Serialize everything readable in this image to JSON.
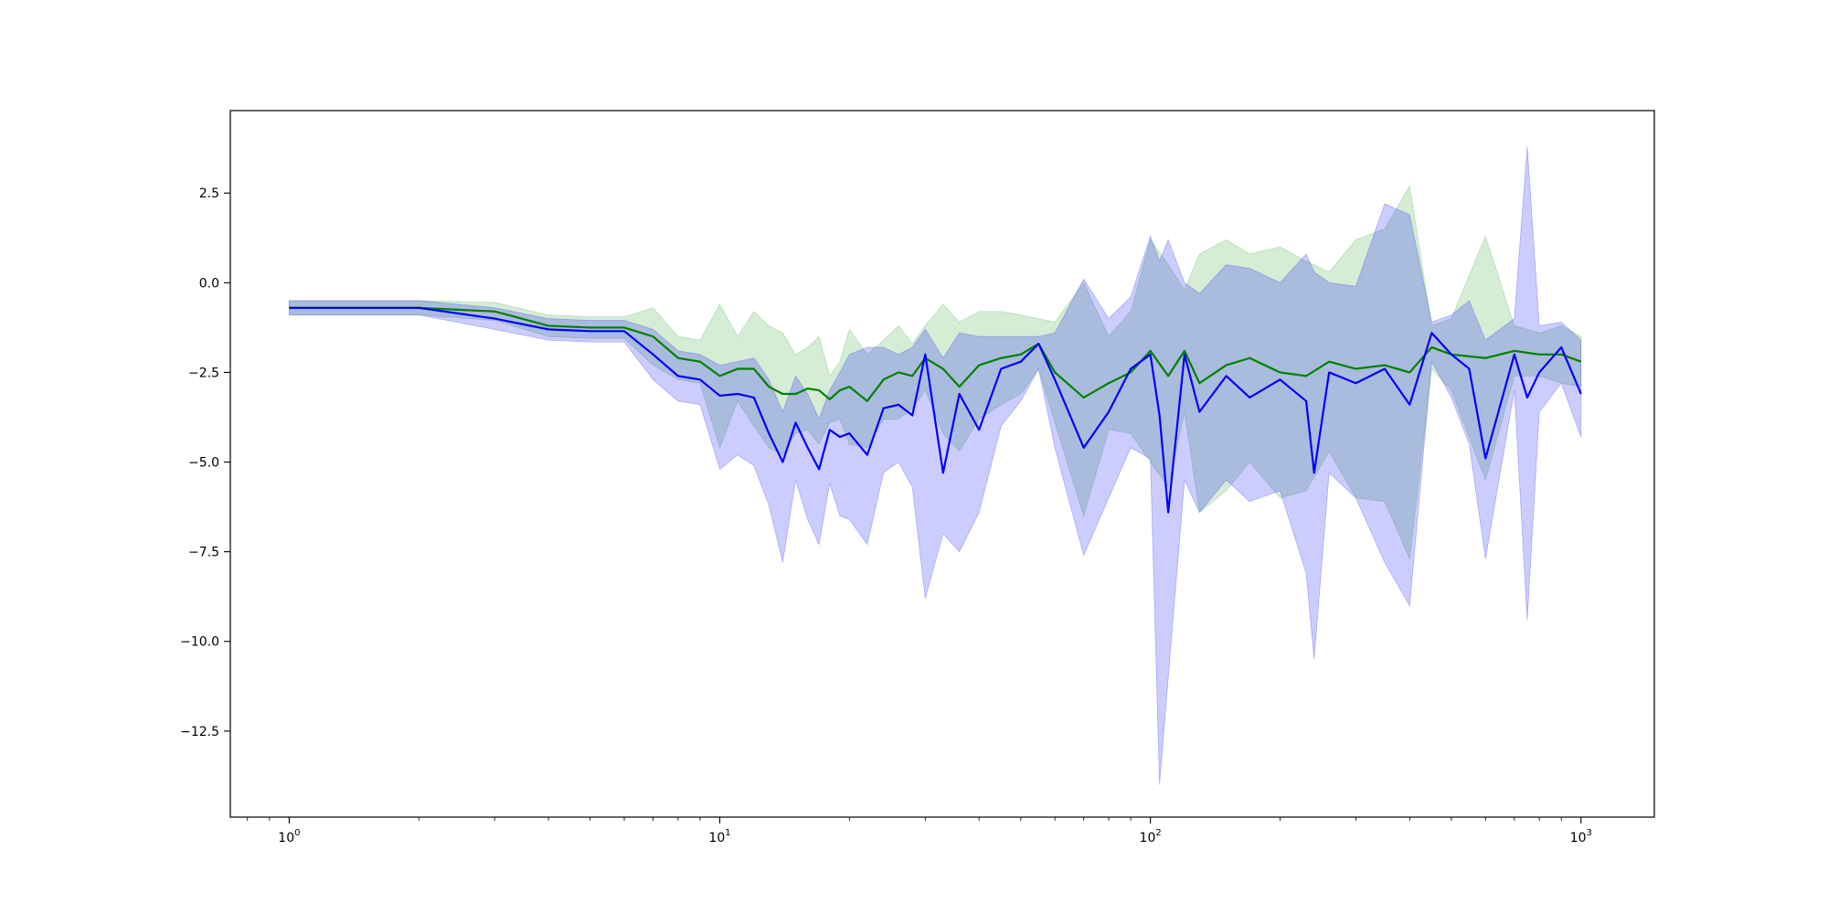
{
  "chart_data": {
    "type": "line",
    "title": "",
    "xlabel": "",
    "ylabel": "",
    "x_scale": "log",
    "xlim": [
      0.73,
      1480
    ],
    "ylim": [
      -14.9,
      4.8
    ],
    "grid": false,
    "legend": "none",
    "x_ticks": [
      {
        "value": 1,
        "base": "10",
        "exp": "0"
      },
      {
        "value": 10,
        "base": "10",
        "exp": "1"
      },
      {
        "value": 100,
        "base": "10",
        "exp": "2"
      },
      {
        "value": 1000,
        "base": "10",
        "exp": "3"
      }
    ],
    "y_ticks": [
      {
        "value": 2.5,
        "label": "2.5"
      },
      {
        "value": 0,
        "label": "0.0"
      },
      {
        "value": -2.5,
        "label": "−2.5"
      },
      {
        "value": -5,
        "label": "−5.0"
      },
      {
        "value": -7.5,
        "label": "−7.5"
      },
      {
        "value": -10,
        "label": "−10.0"
      },
      {
        "value": -12.5,
        "label": "−12.5"
      }
    ],
    "series": [
      {
        "color": "#008000",
        "band_color": "#2ca02c",
        "x": [
          1,
          2,
          3,
          4,
          5,
          6,
          7,
          8,
          9,
          10,
          11,
          12,
          13,
          14,
          15,
          16,
          17,
          18,
          19,
          20,
          22,
          24,
          26,
          28,
          30,
          33,
          36,
          40,
          45,
          50,
          55,
          60,
          70,
          80,
          90,
          100,
          110,
          120,
          130,
          150,
          170,
          200,
          230,
          260,
          300,
          350,
          400,
          450,
          500,
          600,
          700,
          800,
          900,
          1000
        ],
        "y": [
          -0.7,
          -0.7,
          -0.8,
          -1.2,
          -1.25,
          -1.25,
          -1.5,
          -2.1,
          -2.2,
          -2.6,
          -2.4,
          -2.4,
          -2.9,
          -3.1,
          -3.1,
          -2.95,
          -3.0,
          -3.25,
          -3.0,
          -2.9,
          -3.3,
          -2.7,
          -2.5,
          -2.6,
          -2.1,
          -2.4,
          -2.9,
          -2.3,
          -2.1,
          -2.0,
          -1.7,
          -2.5,
          -3.2,
          -2.8,
          -2.5,
          -1.9,
          -2.6,
          -1.9,
          -2.8,
          -2.3,
          -2.1,
          -2.5,
          -2.6,
          -2.2,
          -2.4,
          -2.3,
          -2.5,
          -1.8,
          -2.0,
          -2.1,
          -1.9,
          -2.0,
          -2.0,
          -2.2
        ],
        "upper": [
          -0.5,
          -0.5,
          -0.55,
          -0.9,
          -0.95,
          -0.95,
          -0.7,
          -1.5,
          -1.6,
          -0.6,
          -1.5,
          -0.8,
          -1.2,
          -1.4,
          -2.0,
          -1.8,
          -1.5,
          -2.6,
          -2.2,
          -1.3,
          -2.0,
          -1.6,
          -1.2,
          -1.7,
          -1.2,
          -0.6,
          -1.1,
          -0.8,
          -0.8,
          -0.9,
          -1.0,
          -1.1,
          0.0,
          -1.5,
          -0.8,
          1.2,
          0.5,
          -0.2,
          0.8,
          1.2,
          0.8,
          1.0,
          0.6,
          0.3,
          1.2,
          1.5,
          2.7,
          -1.2,
          -1.0,
          1.3,
          -1.2,
          -1.4,
          -1.2,
          -1.5
        ],
        "lower": [
          -0.9,
          -0.9,
          -1.05,
          -1.5,
          -1.55,
          -1.55,
          -2.3,
          -2.7,
          -2.8,
          -4.6,
          -3.3,
          -4.0,
          -4.6,
          -4.8,
          -4.2,
          -4.1,
          -4.5,
          -3.9,
          -3.8,
          -4.5,
          -4.6,
          -3.8,
          -3.8,
          -3.5,
          -3.0,
          -4.2,
          -4.7,
          -3.8,
          -3.4,
          -3.1,
          -2.4,
          -3.9,
          -6.5,
          -4.1,
          -4.2,
          -5.0,
          -5.7,
          -3.6,
          -6.4,
          -5.8,
          -5.0,
          -6.0,
          -5.8,
          -4.7,
          -6.0,
          -6.1,
          -7.7,
          -2.4,
          -3.0,
          -5.5,
          -2.6,
          -2.6,
          -2.8,
          -2.9
        ]
      },
      {
        "color": "#0000ff",
        "band_color": "#0000ff",
        "x": [
          1,
          2,
          3,
          4,
          5,
          6,
          7,
          8,
          9,
          10,
          11,
          12,
          13,
          14,
          15,
          16,
          17,
          18,
          19,
          20,
          22,
          24,
          26,
          28,
          30,
          33,
          36,
          40,
          45,
          50,
          55,
          60,
          70,
          80,
          90,
          100,
          105,
          110,
          120,
          130,
          150,
          170,
          200,
          230,
          240,
          260,
          300,
          350,
          400,
          450,
          500,
          550,
          600,
          700,
          750,
          800,
          900,
          1000
        ],
        "y": [
          -0.7,
          -0.7,
          -1.0,
          -1.3,
          -1.35,
          -1.35,
          -2.0,
          -2.6,
          -2.7,
          -3.15,
          -3.1,
          -3.2,
          -4.2,
          -5.0,
          -3.9,
          -4.6,
          -5.2,
          -4.1,
          -4.3,
          -4.2,
          -4.8,
          -3.5,
          -3.4,
          -3.7,
          -2.0,
          -5.3,
          -3.1,
          -4.1,
          -2.4,
          -2.2,
          -1.7,
          -2.7,
          -4.6,
          -3.6,
          -2.4,
          -2.0,
          -3.7,
          -6.4,
          -2.0,
          -3.6,
          -2.6,
          -3.2,
          -2.7,
          -3.3,
          -5.3,
          -2.5,
          -2.8,
          -2.4,
          -3.4,
          -1.4,
          -2.0,
          -2.4,
          -4.9,
          -2.0,
          -3.2,
          -2.5,
          -1.8,
          -3.1
        ],
        "upper": [
          -0.5,
          -0.5,
          -0.7,
          -1.0,
          -1.05,
          -1.05,
          -1.3,
          -1.9,
          -2.0,
          -2.3,
          -2.2,
          -2.1,
          -2.7,
          -3.6,
          -2.6,
          -3.1,
          -3.8,
          -3.0,
          -2.5,
          -2.0,
          -1.8,
          -1.8,
          -2.0,
          -1.8,
          -1.3,
          -2.1,
          -1.4,
          -1.5,
          -1.5,
          -1.5,
          -1.5,
          -1.4,
          0.1,
          -1.0,
          -0.4,
          1.3,
          0.6,
          1.2,
          0.0,
          -0.3,
          0.5,
          0.4,
          0.0,
          0.8,
          0.3,
          0.0,
          -0.1,
          2.2,
          1.9,
          -1.1,
          -0.9,
          -0.5,
          -1.6,
          -1.0,
          3.8,
          -1.2,
          -1.1,
          -1.6
        ],
        "lower": [
          -0.9,
          -0.9,
          -1.3,
          -1.6,
          -1.65,
          -1.65,
          -2.7,
          -3.3,
          -3.4,
          -5.2,
          -4.8,
          -5.1,
          -6.2,
          -7.8,
          -5.5,
          -6.6,
          -7.3,
          -5.6,
          -6.5,
          -6.6,
          -7.3,
          -5.3,
          -5.0,
          -5.7,
          -8.8,
          -7.0,
          -7.5,
          -6.4,
          -4.0,
          -3.3,
          -2.4,
          -4.6,
          -7.6,
          -6.0,
          -4.6,
          -4.9,
          -14.0,
          -11.0,
          -5.5,
          -6.4,
          -5.5,
          -6.1,
          -5.8,
          -8.1,
          -10.5,
          -5.3,
          -6.0,
          -7.8,
          -9.0,
          -2.2,
          -3.2,
          -4.5,
          -7.7,
          -3.0,
          -9.4,
          -3.6,
          -2.8,
          -4.3
        ]
      }
    ]
  }
}
